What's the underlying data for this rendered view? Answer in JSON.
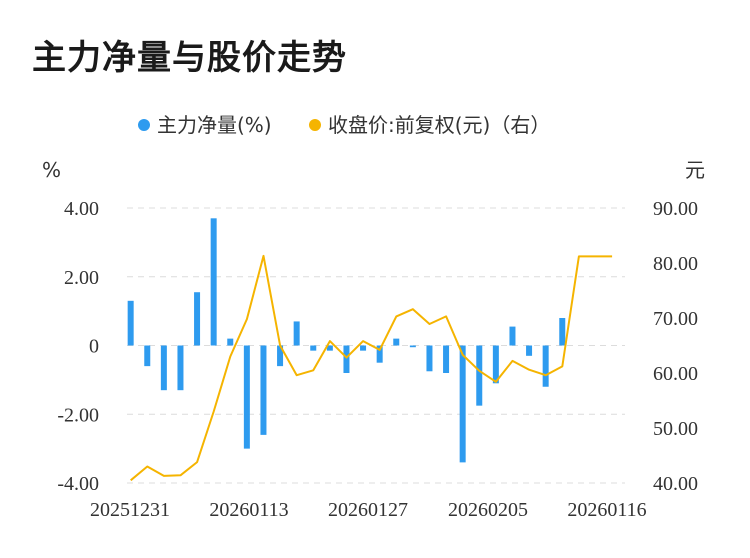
{
  "title": "主力净量与股价走势",
  "chart_data": {
    "type": "bar+line",
    "legend": [
      {
        "name": "主力净量(%)",
        "color": "#2e9bef"
      },
      {
        "name": "收盘价:前复权(元)（右）",
        "color": "#f5b400"
      }
    ],
    "legend_position": "top",
    "left_unit": "%",
    "right_unit": "元",
    "left_axis": {
      "min": -4,
      "max": 4,
      "ticks": [
        "4.00",
        "2.00",
        "0",
        "-2.00",
        "-4.00"
      ]
    },
    "right_axis": {
      "min": 40,
      "max": 90,
      "ticks": [
        "90.00",
        "80.00",
        "70.00",
        "60.00",
        "50.00",
        "40.00"
      ]
    },
    "x_tick_labels": [
      "20251231",
      "20260113",
      "20260127",
      "20260205",
      "20260116"
    ],
    "grid": "horizontal dashed",
    "series": [
      {
        "name": "主力净量(%)",
        "type": "bar",
        "color": "#2e9bef",
        "values": [
          1.3,
          -0.6,
          -1.3,
          -1.3,
          1.55,
          3.7,
          0.2,
          -3.0,
          -2.6,
          -0.6,
          0.7,
          -0.15,
          -0.15,
          -0.8,
          -0.15,
          -0.5,
          0.2,
          -0.05,
          -0.75,
          -0.8,
          -3.4,
          -1.75,
          -1.1,
          0.55,
          -0.3,
          -1.2,
          0.8,
          0.0,
          0.0,
          0.0
        ]
      },
      {
        "name": "收盘价:前复权(元)（右）",
        "type": "line",
        "color": "#f5b400",
        "values": [
          40.5,
          43.0,
          41.3,
          41.4,
          43.8,
          53.0,
          63.0,
          69.8,
          81.3,
          65.0,
          59.6,
          60.5,
          65.8,
          62.8,
          65.8,
          64.2,
          70.3,
          71.6,
          68.9,
          70.3,
          63.3,
          60.4,
          58.4,
          62.2,
          60.6,
          59.6,
          61.2,
          81.2,
          81.2,
          81.2
        ]
      }
    ]
  }
}
